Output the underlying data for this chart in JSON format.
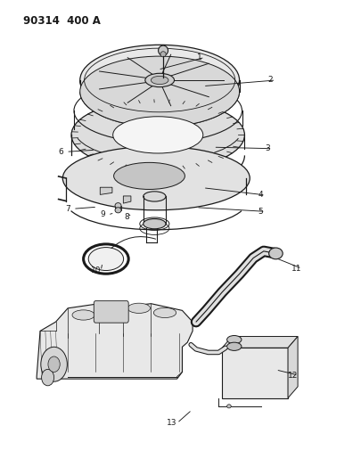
{
  "title": "90314  400 A",
  "bg_color": "#ffffff",
  "line_color": "#1a1a1a",
  "label_positions": {
    "1": {
      "lpos": [
        0.555,
        0.895
      ],
      "apos": [
        0.435,
        0.868
      ]
    },
    "2": {
      "lpos": [
        0.76,
        0.845
      ],
      "apos": [
        0.565,
        0.832
      ]
    },
    "3": {
      "lpos": [
        0.75,
        0.695
      ],
      "apos": [
        0.595,
        0.698
      ]
    },
    "4": {
      "lpos": [
        0.73,
        0.593
      ],
      "apos": [
        0.565,
        0.609
      ]
    },
    "5": {
      "lpos": [
        0.73,
        0.557
      ],
      "apos": [
        0.545,
        0.566
      ]
    },
    "6": {
      "lpos": [
        0.155,
        0.688
      ],
      "apos": [
        0.255,
        0.692
      ]
    },
    "7": {
      "lpos": [
        0.175,
        0.563
      ],
      "apos": [
        0.26,
        0.567
      ]
    },
    "8": {
      "lpos": [
        0.345,
        0.545
      ],
      "apos": [
        0.345,
        0.554
      ]
    },
    "9": {
      "lpos": [
        0.275,
        0.55
      ],
      "apos": [
        0.31,
        0.554
      ]
    },
    "10": {
      "lpos": [
        0.255,
        0.427
      ],
      "apos": [
        0.275,
        0.445
      ]
    },
    "11": {
      "lpos": [
        0.835,
        0.432
      ],
      "apos": [
        0.765,
        0.458
      ]
    },
    "12": {
      "lpos": [
        0.825,
        0.198
      ],
      "apos": [
        0.775,
        0.21
      ]
    },
    "13": {
      "lpos": [
        0.475,
        0.093
      ],
      "apos": [
        0.533,
        0.122
      ]
    }
  }
}
